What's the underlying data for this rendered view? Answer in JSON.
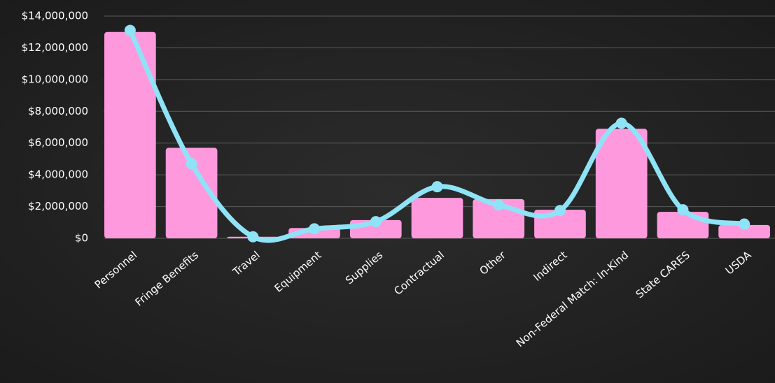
{
  "chart_data": {
    "type": "bar",
    "categories": [
      "Personnel",
      "Fringe  Benefits",
      "Travel",
      "Equipment",
      "Supplies",
      "Contractual",
      "Other",
      "Indirect",
      "Non-Federal Match:  In-Kind",
      "State CARES",
      "USDA"
    ],
    "series": [
      {
        "color": "#ff99dd",
        "values": [
          13000000,
          5700000,
          100000,
          650000,
          1150000,
          2550000,
          2470000,
          1800000,
          6900000,
          1670000,
          840000
        ]
      },
      {
        "color": "#8fe3f7",
        "type": "line",
        "smooth": true,
        "values": [
          13100000,
          4700000,
          100000,
          600000,
          1050000,
          3250000,
          2100000,
          1750000,
          7250000,
          1800000,
          900000
        ]
      }
    ],
    "ylim": [
      0,
      14000000
    ],
    "yticks": [
      {
        "value": 0,
        "label": "$0"
      },
      {
        "value": 2000000,
        "label": "$2,000,000"
      },
      {
        "value": 4000000,
        "label": "$4,000,000"
      },
      {
        "value": 6000000,
        "label": "$6,000,000"
      },
      {
        "value": 8000000,
        "label": "$8,000,000"
      },
      {
        "value": 10000000,
        "label": "$10,000,000"
      },
      {
        "value": 12000000,
        "label": "$12,000,000"
      },
      {
        "value": 14000000,
        "label": "$14,000,000"
      }
    ],
    "grid": true
  }
}
